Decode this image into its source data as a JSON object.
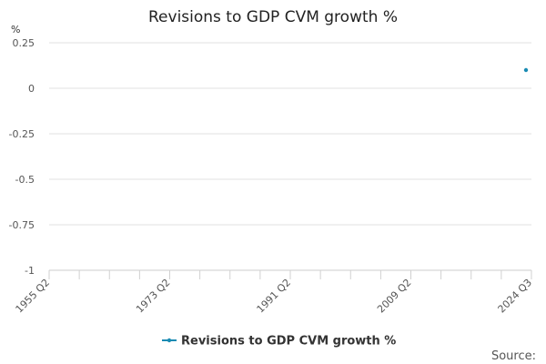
{
  "chart_data": {
    "type": "line",
    "title": "Revisions to GDP CVM growth %",
    "ylabel": "%",
    "xlabel": "",
    "ylim": [
      -1,
      0.25
    ],
    "yticks": [
      0.25,
      0,
      -0.25,
      -0.5,
      -0.75,
      -1
    ],
    "ytick_labels": [
      "0.25",
      "0",
      "-0.25",
      "-0.5",
      "-0.75",
      "-1"
    ],
    "xtick_labels": [
      "1955 Q2",
      "1973 Q2",
      "1991 Q2",
      "2009 Q2",
      "2024 Q3"
    ],
    "grid": true,
    "legend_position": "bottom",
    "series": [
      {
        "name": "Revisions to GDP CVM growth %",
        "color": "#1a8bb3",
        "points": [
          {
            "x": "2024 Q3",
            "y": 0.1
          }
        ]
      }
    ]
  },
  "source_label": "Source:"
}
